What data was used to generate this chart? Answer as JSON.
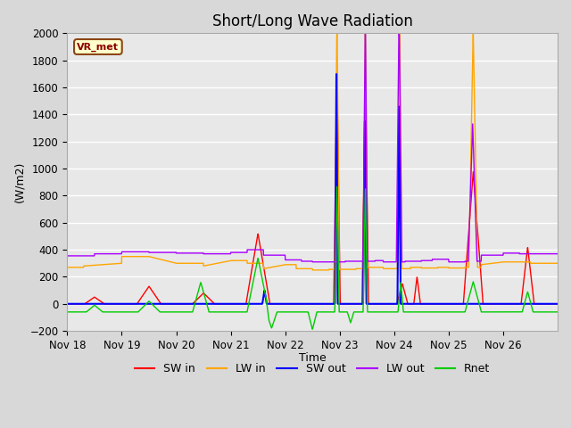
{
  "title": "Short/Long Wave Radiation",
  "ylabel": "(W/m2)",
  "xlabel": "Time",
  "ylim": [
    -200,
    2000
  ],
  "xtick_labels": [
    "Nov 18",
    "Nov 19",
    "Nov 20",
    "Nov 21",
    "Nov 22",
    "Nov 23",
    "Nov 24",
    "Nov 25",
    "Nov 26"
  ],
  "ytick_values": [
    -200,
    0,
    200,
    400,
    600,
    800,
    1000,
    1200,
    1400,
    1600,
    1800,
    2000
  ],
  "bg_color": "#e8e8e8",
  "station_label": "VR_met",
  "title_fontsize": 12,
  "axis_fontsize": 9,
  "sw_in_color": "#ff0000",
  "lw_in_color": "#ffa500",
  "sw_out_color": "#0000ff",
  "lw_out_color": "#aa00ff",
  "rnet_color": "#00cc00",
  "legend_entries": [
    "SW in",
    "LW in",
    "SW out",
    "LW out",
    "Rnet"
  ]
}
